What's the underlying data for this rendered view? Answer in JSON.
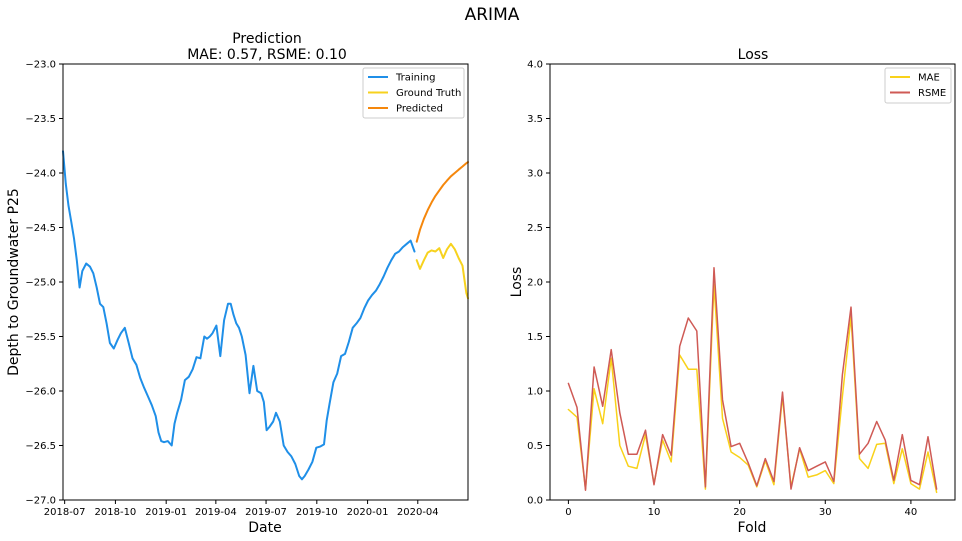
{
  "figure": {
    "suptitle": "ARIMA"
  },
  "colors": {
    "training": "#1f8fe8",
    "ground_truth": "#f7d21e",
    "predicted": "#f5870c",
    "mae": "#f9d21a",
    "rsme": "#cf5a55"
  },
  "chart_data": [
    {
      "type": "line",
      "title": "Prediction",
      "subtitle": "MAE: 0.57, RSME: 0.10",
      "xlabel": "Date",
      "ylabel": "Depth to Groundwater P25",
      "x_axis": "date",
      "xlim": [
        "2018-06-28",
        "2020-07-01"
      ],
      "ylim": [
        -27.0,
        -23.0
      ],
      "xticks": [
        "2018-07",
        "2018-10",
        "2019-01",
        "2019-04",
        "2019-07",
        "2019-10",
        "2020-01",
        "2020-04"
      ],
      "yticks": [
        -27.0,
        -26.5,
        -26.0,
        -25.5,
        -25.0,
        -24.5,
        -24.0,
        -23.5,
        -23.0
      ],
      "legend": {
        "position": "top-right",
        "entries": [
          "Training",
          "Ground Truth",
          "Predicted"
        ]
      },
      "grid": false,
      "series": [
        {
          "name": "Training",
          "x": [
            "2018-06-28",
            "2018-07-03",
            "2018-07-08",
            "2018-07-13",
            "2018-07-18",
            "2018-07-23",
            "2018-07-28",
            "2018-08-02",
            "2018-08-09",
            "2018-08-16",
            "2018-08-22",
            "2018-08-28",
            "2018-09-03",
            "2018-09-09",
            "2018-09-15",
            "2018-09-21",
            "2018-09-28",
            "2018-10-05",
            "2018-10-11",
            "2018-10-18",
            "2018-10-25",
            "2018-11-01",
            "2018-11-08",
            "2018-11-15",
            "2018-11-22",
            "2018-11-29",
            "2018-12-06",
            "2018-12-13",
            "2018-12-18",
            "2018-12-23",
            "2018-12-28",
            "2019-01-04",
            "2019-01-11",
            "2019-01-16",
            "2019-01-21",
            "2019-01-28",
            "2019-02-04",
            "2019-02-11",
            "2019-02-18",
            "2019-02-25",
            "2019-03-04",
            "2019-03-11",
            "2019-03-16",
            "2019-03-21",
            "2019-03-26",
            "2019-04-02",
            "2019-04-09",
            "2019-04-16",
            "2019-04-23",
            "2019-04-28",
            "2019-05-03",
            "2019-05-08",
            "2019-05-13",
            "2019-05-18",
            "2019-05-25",
            "2019-06-01",
            "2019-06-08",
            "2019-06-15",
            "2019-06-22",
            "2019-06-27",
            "2019-07-02",
            "2019-07-07",
            "2019-07-14",
            "2019-07-19",
            "2019-07-26",
            "2019-08-02",
            "2019-08-09",
            "2019-08-16",
            "2019-08-23",
            "2019-08-30",
            "2019-09-04",
            "2019-09-09",
            "2019-09-16",
            "2019-09-23",
            "2019-09-30",
            "2019-10-07",
            "2019-10-14",
            "2019-10-19",
            "2019-10-24",
            "2019-10-31",
            "2019-11-07",
            "2019-11-14",
            "2019-11-21",
            "2019-11-28",
            "2019-12-05",
            "2019-12-12",
            "2019-12-19",
            "2019-12-26",
            "2020-01-02",
            "2020-01-09",
            "2020-01-16",
            "2020-01-23",
            "2020-01-30",
            "2020-02-06",
            "2020-02-13",
            "2020-02-20",
            "2020-02-27",
            "2020-03-05",
            "2020-03-12",
            "2020-03-19",
            "2020-03-26"
          ],
          "y": [
            -23.8,
            -24.1,
            -24.3,
            -24.45,
            -24.6,
            -24.8,
            -25.05,
            -24.9,
            -24.83,
            -24.86,
            -24.92,
            -25.05,
            -25.2,
            -25.23,
            -25.38,
            -25.56,
            -25.61,
            -25.53,
            -25.47,
            -25.42,
            -25.56,
            -25.7,
            -25.76,
            -25.88,
            -25.97,
            -26.05,
            -26.13,
            -26.23,
            -26.38,
            -26.46,
            -26.47,
            -26.46,
            -26.5,
            -26.3,
            -26.2,
            -26.08,
            -25.9,
            -25.87,
            -25.8,
            -25.69,
            -25.7,
            -25.5,
            -25.52,
            -25.5,
            -25.47,
            -25.4,
            -25.68,
            -25.35,
            -25.2,
            -25.2,
            -25.3,
            -25.38,
            -25.42,
            -25.5,
            -25.67,
            -26.02,
            -25.77,
            -26.0,
            -26.02,
            -26.1,
            -26.36,
            -26.33,
            -26.28,
            -26.2,
            -26.28,
            -26.5,
            -26.56,
            -26.6,
            -26.67,
            -26.78,
            -26.81,
            -26.78,
            -26.72,
            -26.65,
            -26.52,
            -26.51,
            -26.49,
            -26.27,
            -26.12,
            -25.92,
            -25.84,
            -25.68,
            -25.66,
            -25.55,
            -25.42,
            -25.38,
            -25.33,
            -25.24,
            -25.17,
            -25.12,
            -25.08,
            -25.02,
            -24.95,
            -24.87,
            -24.8,
            -24.74,
            -24.72,
            -24.68,
            -24.65,
            -24.62,
            -24.72
          ]
        },
        {
          "name": "Ground Truth",
          "x": [
            "2020-03-30",
            "2020-04-05",
            "2020-04-12",
            "2020-04-19",
            "2020-04-26",
            "2020-05-03",
            "2020-05-10",
            "2020-05-17",
            "2020-05-24",
            "2020-05-31",
            "2020-06-07",
            "2020-06-14",
            "2020-06-21",
            "2020-06-28",
            "2020-07-01"
          ],
          "y": [
            -24.8,
            -24.88,
            -24.8,
            -24.73,
            -24.71,
            -24.72,
            -24.69,
            -24.78,
            -24.7,
            -24.65,
            -24.7,
            -24.78,
            -24.85,
            -25.1,
            -25.15
          ]
        },
        {
          "name": "Predicted",
          "x": [
            "2020-03-30",
            "2020-04-05",
            "2020-04-12",
            "2020-04-19",
            "2020-04-26",
            "2020-05-03",
            "2020-05-10",
            "2020-05-17",
            "2020-05-24",
            "2020-05-31",
            "2020-06-07",
            "2020-06-14",
            "2020-06-21",
            "2020-06-28",
            "2020-07-01"
          ],
          "y": [
            -24.63,
            -24.52,
            -24.42,
            -24.34,
            -24.27,
            -24.21,
            -24.16,
            -24.11,
            -24.07,
            -24.03,
            -24.0,
            -23.97,
            -23.94,
            -23.91,
            -23.9
          ]
        }
      ]
    },
    {
      "type": "line",
      "title": "Loss",
      "xlabel": "Fold",
      "ylabel": "Loss",
      "xlim": [
        -2.15,
        45.15
      ],
      "ylim": [
        0.0,
        4.0
      ],
      "xticks": [
        0,
        10,
        20,
        30,
        40
      ],
      "yticks": [
        0.0,
        0.5,
        1.0,
        1.5,
        2.0,
        2.5,
        3.0,
        3.5,
        4.0
      ],
      "legend": {
        "position": "top-right",
        "entries": [
          "MAE",
          "RSME"
        ]
      },
      "grid": false,
      "x": [
        0,
        1,
        2,
        3,
        4,
        5,
        6,
        7,
        8,
        9,
        10,
        11,
        12,
        13,
        14,
        15,
        16,
        17,
        18,
        19,
        20,
        21,
        22,
        23,
        24,
        25,
        26,
        27,
        28,
        29,
        30,
        31,
        32,
        33,
        34,
        35,
        36,
        37,
        38,
        39,
        40,
        41,
        42,
        43
      ],
      "series": [
        {
          "name": "MAE",
          "values": [
            0.83,
            0.76,
            0.1,
            1.02,
            0.7,
            1.3,
            0.5,
            0.31,
            0.29,
            0.6,
            0.15,
            0.55,
            0.35,
            1.33,
            1.2,
            1.2,
            0.1,
            1.98,
            0.75,
            0.44,
            0.39,
            0.32,
            0.12,
            0.36,
            0.14,
            0.95,
            0.12,
            0.47,
            0.21,
            0.23,
            0.27,
            0.15,
            0.95,
            1.68,
            0.38,
            0.29,
            0.51,
            0.52,
            0.15,
            0.47,
            0.15,
            0.1,
            0.44,
            0.07
          ]
        },
        {
          "name": "RSME",
          "values": [
            1.07,
            0.85,
            0.09,
            1.22,
            0.86,
            1.38,
            0.8,
            0.42,
            0.42,
            0.64,
            0.14,
            0.6,
            0.41,
            1.41,
            1.67,
            1.55,
            0.12,
            2.13,
            0.92,
            0.49,
            0.52,
            0.34,
            0.13,
            0.38,
            0.17,
            0.99,
            0.1,
            0.48,
            0.27,
            0.31,
            0.35,
            0.17,
            1.15,
            1.77,
            0.42,
            0.52,
            0.72,
            0.55,
            0.18,
            0.6,
            0.18,
            0.14,
            0.58,
            0.1
          ]
        }
      ]
    }
  ]
}
